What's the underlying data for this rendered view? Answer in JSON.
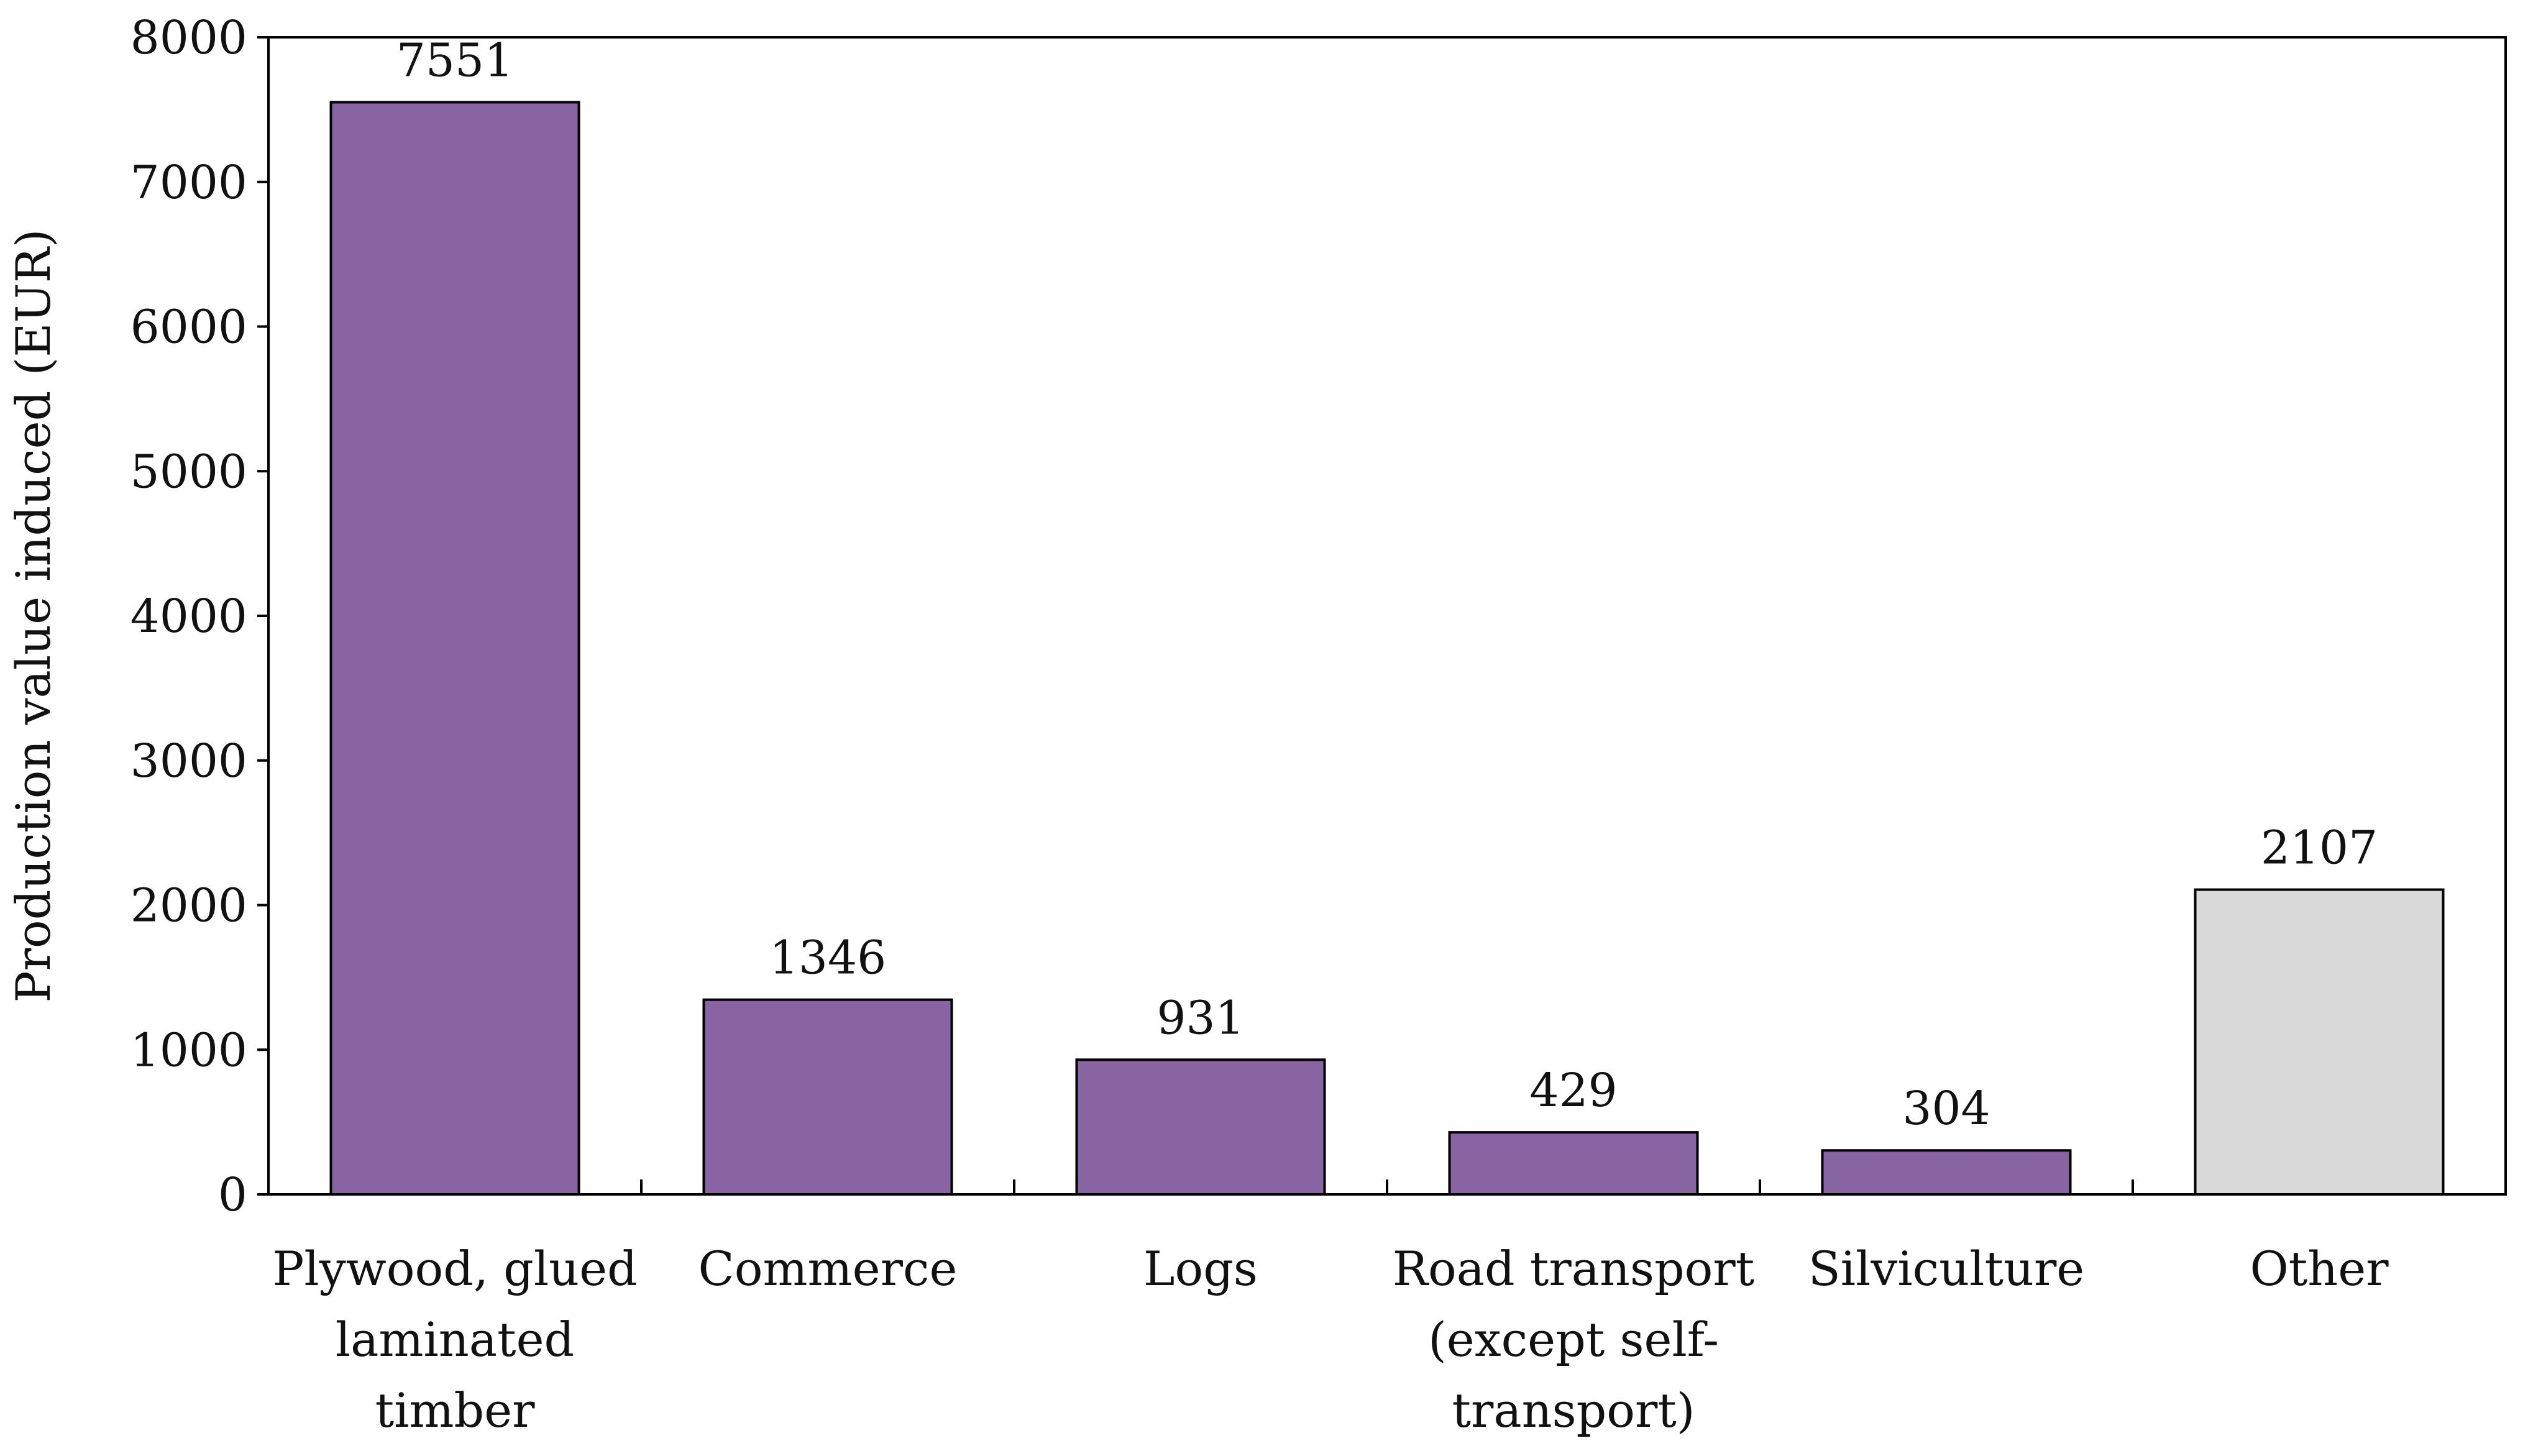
{
  "chart_data": {
    "type": "bar",
    "title": "",
    "xlabel": "",
    "ylabel": "Production value induced (EUR)",
    "ylim": [
      0,
      8000
    ],
    "yticks": [
      0,
      1000,
      2000,
      3000,
      4000,
      5000,
      6000,
      7000,
      8000
    ],
    "grid": false,
    "legend": "none",
    "categories": [
      [
        "Plywood, glued",
        "laminated",
        "timber"
      ],
      [
        "Commerce"
      ],
      [
        "Logs"
      ],
      [
        "Road transport",
        "(except self-",
        "transport)"
      ],
      [
        "Silviculture"
      ],
      [
        "Other"
      ]
    ],
    "values": [
      7551,
      1346,
      931,
      429,
      304,
      2107
    ],
    "data_labels": [
      "7551",
      "1346",
      "931",
      "429",
      "304",
      "2107"
    ],
    "bar_colors": [
      "#8864a3",
      "#8864a3",
      "#8864a3",
      "#8864a3",
      "#8864a3",
      "#d9d9d9"
    ],
    "bar_edge_color": "#000000",
    "axis_color": "#000000",
    "text_color": "#111111"
  }
}
